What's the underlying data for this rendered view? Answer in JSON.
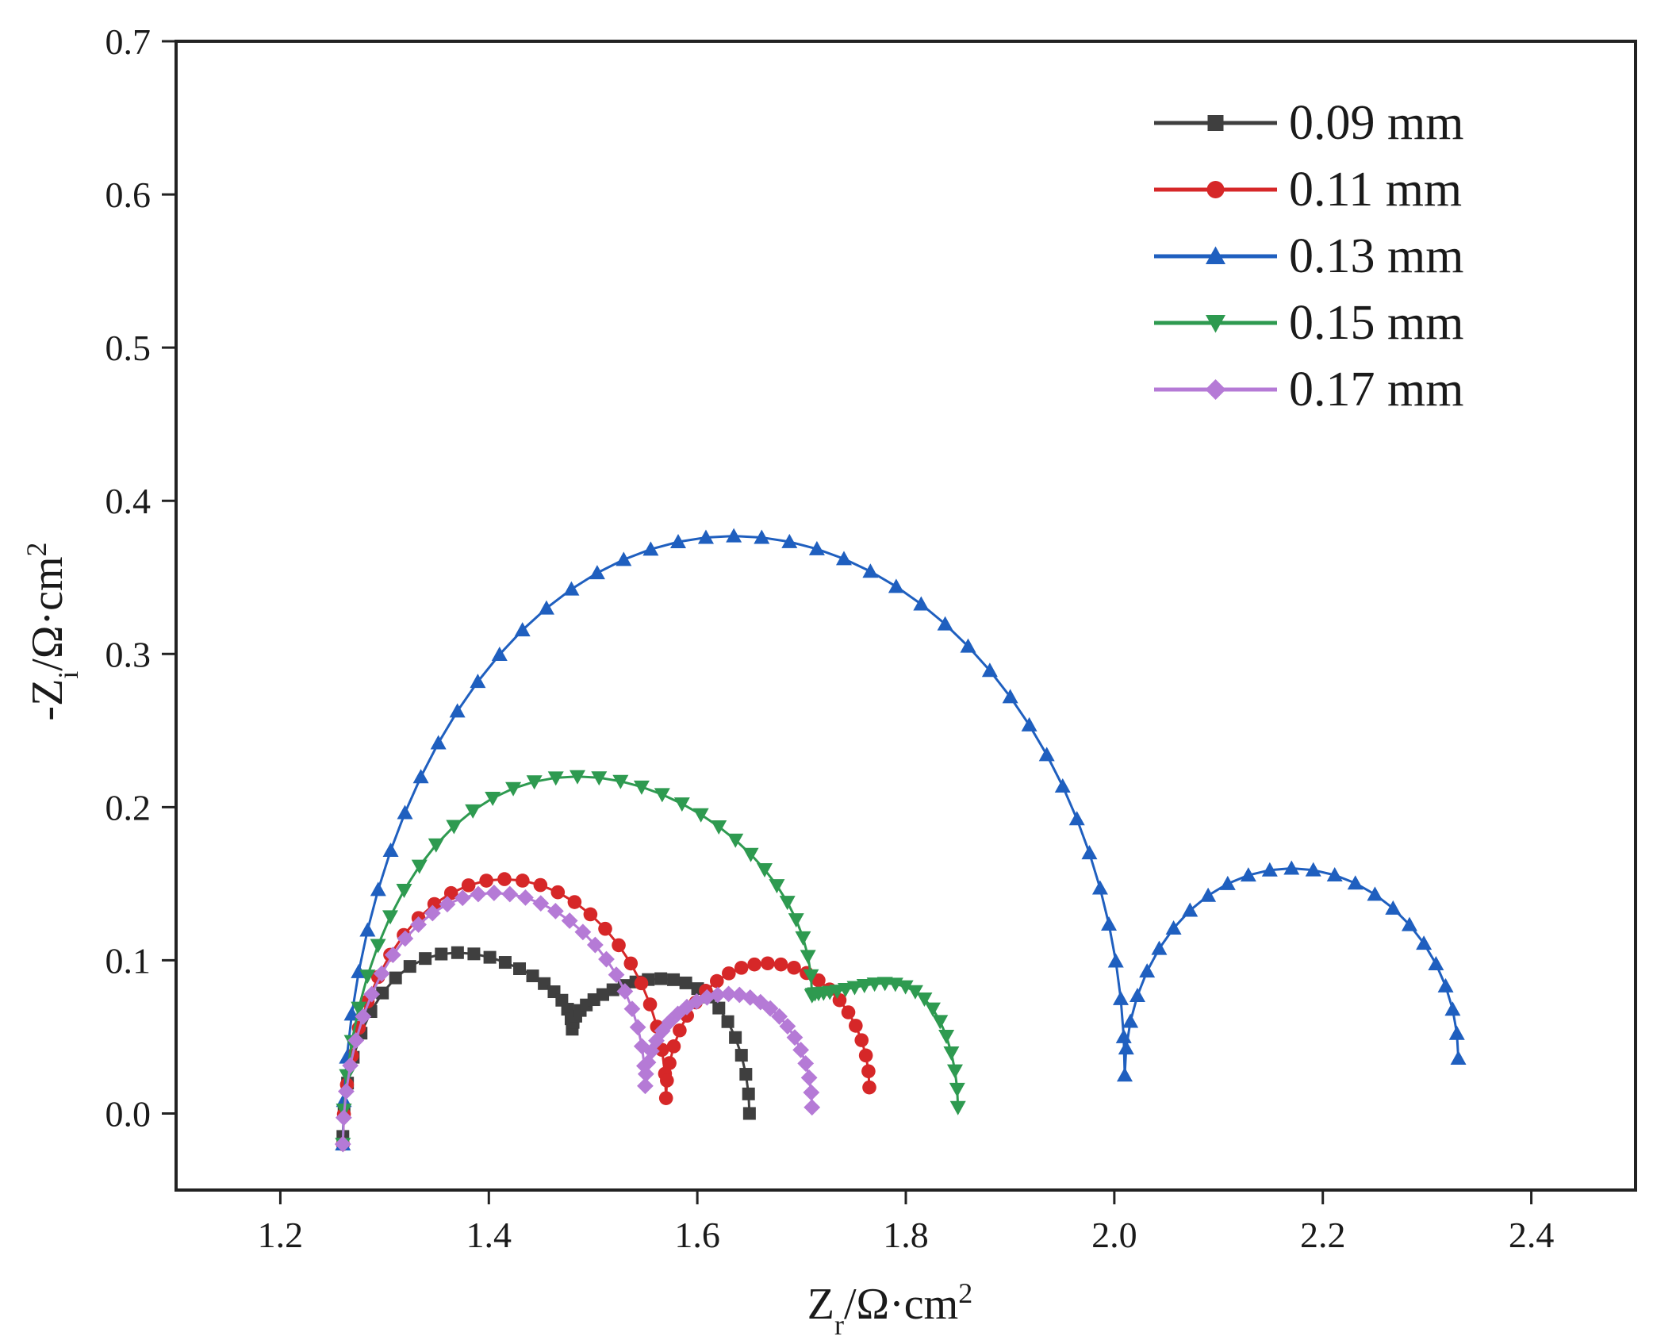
{
  "chart_data": {
    "type": "scatter",
    "title": "",
    "xlabel": "Z_r/Ω·cm²",
    "xlabel_main": "Z",
    "xlabel_sub": "r",
    "xlabel_rest": "/Ω·cm",
    "xlabel_sup": "2",
    "ylabel": "-Z_i/Ω·cm²",
    "ylabel_main": "-Z",
    "ylabel_sub": "i",
    "ylabel_rest": "/Ω·cm",
    "ylabel_sup": "2",
    "xlim": [
      1.1,
      2.5
    ],
    "ylim": [
      -0.05,
      0.7
    ],
    "xticks": [
      1.2,
      1.4,
      1.6,
      1.8,
      2.0,
      2.2,
      2.4
    ],
    "xtick_labels": [
      "1.2",
      "1.4",
      "1.6",
      "1.8",
      "2.0",
      "2.2",
      "2.4"
    ],
    "yticks": [
      0.0,
      0.1,
      0.2,
      0.3,
      0.4,
      0.5,
      0.6,
      0.7
    ],
    "ytick_labels": [
      "0.0",
      "0.1",
      "0.2",
      "0.3",
      "0.4",
      "0.5",
      "0.6",
      "0.7"
    ],
    "grid": false,
    "legend_position": "top-right",
    "series": [
      {
        "name": "0.09 mm",
        "color": "#3f3f3f",
        "marker": "square",
        "arcs": [
          {
            "start": 1.26,
            "end": 1.48,
            "height": 0.105,
            "points": 22,
            "start_y": -0.015,
            "end_y": 0.055
          },
          {
            "start": 1.48,
            "end": 1.65,
            "height": 0.088,
            "points": 22,
            "start_y": 0.055,
            "end_y": 0.0
          }
        ]
      },
      {
        "name": "0.11 mm",
        "color": "#d62728",
        "marker": "circle",
        "arcs": [
          {
            "start": 1.26,
            "end": 1.57,
            "height": 0.153,
            "points": 28,
            "start_y": -0.02,
            "end_y": 0.01
          },
          {
            "start": 1.57,
            "end": 1.765,
            "height": 0.098,
            "points": 24,
            "start_y": 0.01,
            "end_y": 0.017
          }
        ]
      },
      {
        "name": "0.13 mm",
        "color": "#1f5fbf",
        "marker": "triangle-up",
        "arcs": [
          {
            "start": 1.26,
            "end": 2.01,
            "height": 0.377,
            "points": 44,
            "start_y": -0.02,
            "end_y": 0.025
          },
          {
            "start": 2.01,
            "end": 2.33,
            "height": 0.16,
            "points": 24,
            "start_y": 0.025,
            "end_y": 0.036
          }
        ]
      },
      {
        "name": "0.15 mm",
        "color": "#2e9a50",
        "marker": "triangle-down",
        "arcs": [
          {
            "start": 1.26,
            "end": 1.71,
            "height": 0.22,
            "points": 34,
            "start_y": -0.02,
            "end_y": 0.077
          },
          {
            "start": 1.71,
            "end": 1.85,
            "height": 0.085,
            "points": 22,
            "start_y": 0.077,
            "end_y": 0.004
          }
        ]
      },
      {
        "name": "0.17 mm",
        "color": "#b57ad6",
        "marker": "diamond",
        "arcs": [
          {
            "start": 1.26,
            "end": 1.55,
            "height": 0.144,
            "points": 30,
            "start_y": -0.02,
            "end_y": 0.018
          },
          {
            "start": 1.55,
            "end": 1.71,
            "height": 0.078,
            "points": 24,
            "start_y": 0.018,
            "end_y": 0.004
          }
        ]
      }
    ]
  }
}
